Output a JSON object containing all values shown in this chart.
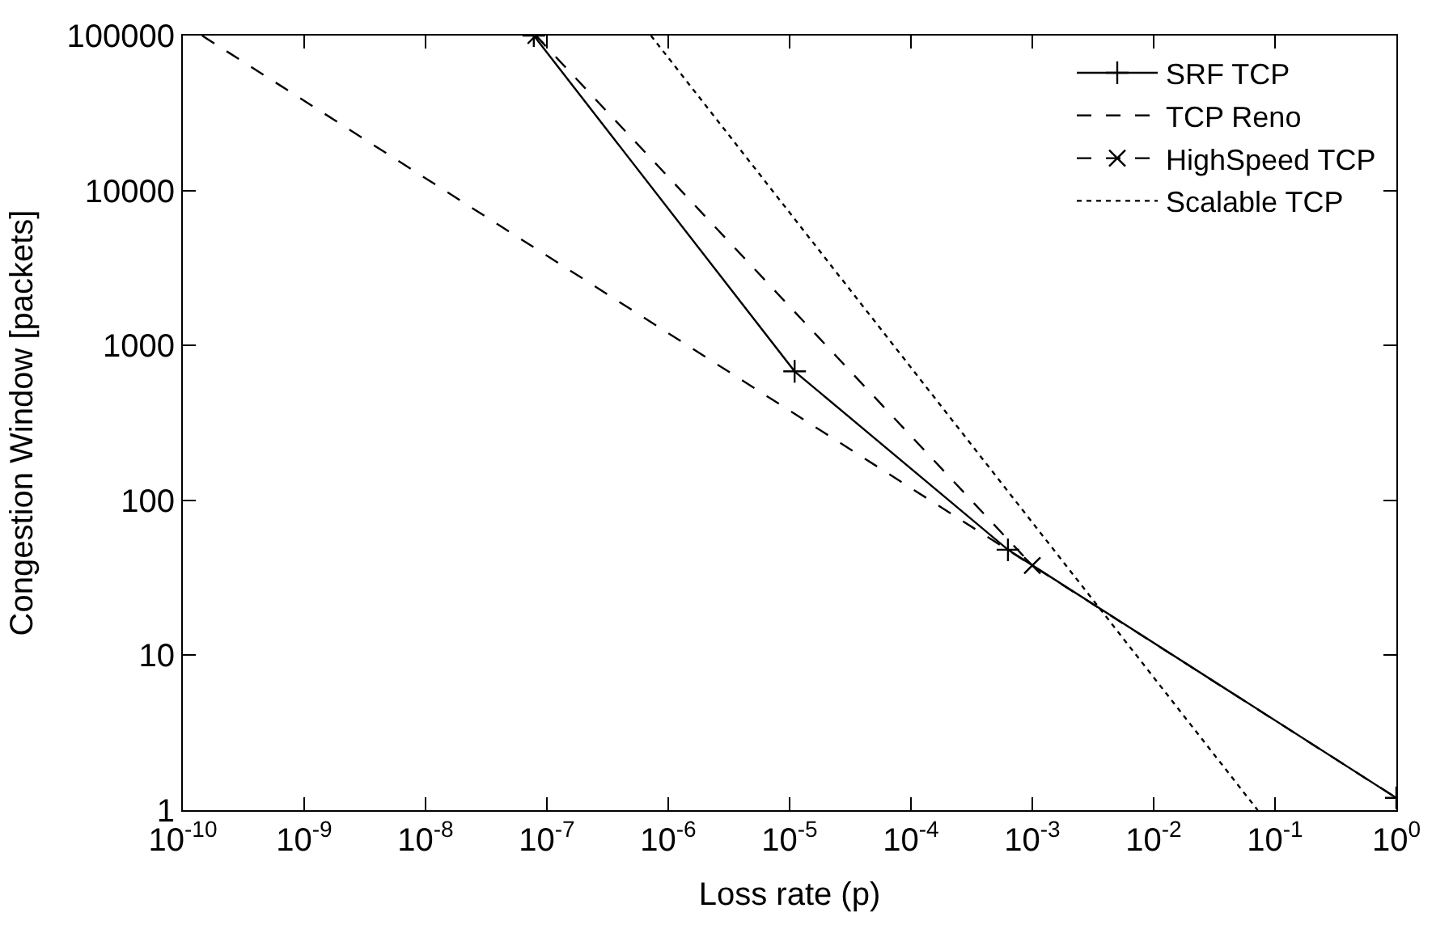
{
  "chart_data": {
    "type": "line",
    "xlabel": "Loss rate (p)",
    "ylabel": "Congestion Window [packets]",
    "log": "xy",
    "legend": "top right",
    "xlim": [
      1e-10,
      1
    ],
    "ylim": [
      1,
      100000
    ],
    "xticks": [
      {
        "value": 1e-10,
        "label": "10$^{-10}$"
      },
      {
        "value": 1e-09,
        "label": "10$^{-9}$"
      },
      {
        "value": 1e-08,
        "label": "10$^{-8}$"
      },
      {
        "value": 1e-07,
        "label": "10$^{-7}$"
      },
      {
        "value": 1e-06,
        "label": "10$^{-6}$"
      },
      {
        "value": 1e-05,
        "label": "10$^{-5}$"
      },
      {
        "value": 0.0001,
        "label": "10$^{-4}$"
      },
      {
        "value": 0.001,
        "label": "10$^{-3}$"
      },
      {
        "value": 0.01,
        "label": "10$^{-2}$"
      },
      {
        "value": 0.1,
        "label": "10$^{-1}$"
      },
      {
        "value": 1,
        "label": "10$^{0}$"
      }
    ],
    "yticks": [
      1,
      10,
      100,
      1000,
      10000,
      100000
    ],
    "series": [
      {
        "name": "SRF TCP",
        "color": "#000000",
        "line_style": "solid",
        "marker": "cross",
        "x": [
          7.8e-08,
          1.1e-05,
          0.00063,
          1
        ],
        "values": [
          100000,
          680,
          48,
          1.2
        ]
      },
      {
        "name": "TCP Reno",
        "color": "#000000",
        "line_style": "dashed",
        "marker": "none",
        "x": [
          1.44e-10,
          1
        ],
        "values": [
          100000,
          1.2
        ]
      },
      {
        "name": "HighSpeed TCP",
        "color": "#000000",
        "line_style": "dashed",
        "marker": "x",
        "x": [
          8.1e-08,
          0.001
        ],
        "values": [
          100000,
          38
        ]
      },
      {
        "name": "Scalable TCP",
        "color": "#000000",
        "line_style": "dotted",
        "marker": "none",
        "x": [
          7.2e-07,
          0.072
        ],
        "values": [
          100000,
          1
        ]
      }
    ]
  }
}
